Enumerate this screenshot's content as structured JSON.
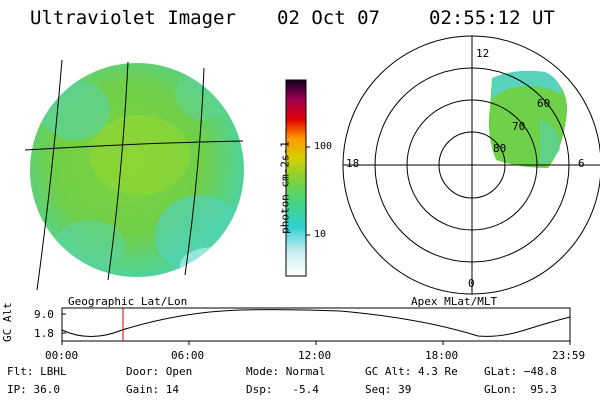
{
  "header": {
    "instrument": "Ultraviolet Imager",
    "date": "02 Oct 07",
    "time": "02:55:12 UT"
  },
  "colorbar": {
    "label": "photon cm-2s-1",
    "ticks": [
      "100",
      "10"
    ]
  },
  "panels": {
    "left_caption": "Geographic Lat/Lon",
    "right_caption": "Apex MLat/MLT",
    "polar_mlt_labels": {
      "top": "12",
      "left": "18",
      "right": "6",
      "bottom": "0"
    },
    "polar_lat_labels": [
      "60",
      "70",
      "80"
    ]
  },
  "altitude_plot": {
    "ylabel": "GC Alt",
    "yticks": [
      "9.0",
      "1.8"
    ],
    "xticks": [
      "00:00",
      "06:00",
      "12:00",
      "18:00",
      "23:59"
    ],
    "marker_time": "02:55"
  },
  "status": {
    "row1": {
      "flt": "Flt: LBHL",
      "door": "Door: Open",
      "mode": "Mode: Normal",
      "gcalt": "GC Alt: 4.3 Re",
      "glat": "GLat: −48.8"
    },
    "row2": {
      "ip": "IP: 36.0",
      "gain": "Gain: 14",
      "dsp": "Dsp:   -5.4",
      "seq": "Seq: 39",
      "glon": "GLon:  95.3"
    }
  },
  "colors": {
    "green": "#7bd335",
    "cyan": "#39d6cf",
    "marker": "#d40000"
  }
}
